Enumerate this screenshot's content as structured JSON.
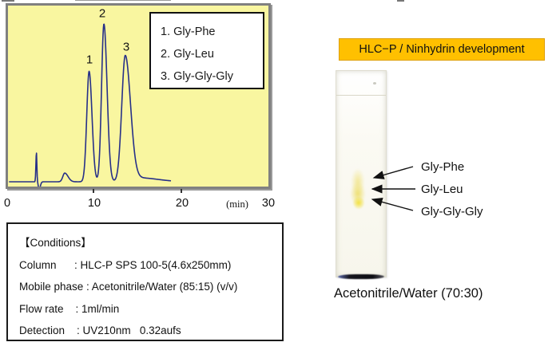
{
  "colors": {
    "chart_bg": "#F9F6A0",
    "trace": "#273088",
    "banner_bg": "#FFC000",
    "banner_border": "#DE9E00"
  },
  "chromatogram": {
    "legend": [
      "1. Gly-Phe",
      "2. Gly-Leu",
      "3. Gly-Gly-Gly"
    ],
    "x_tick_labels": [
      "0",
      "10",
      "20",
      "30"
    ],
    "x_unit": "(min)"
  },
  "chart_data": {
    "type": "line",
    "title": "",
    "xlabel": "(min)",
    "ylabel": "",
    "xlim": [
      0,
      30
    ],
    "x_ticks": [
      0,
      10,
      20,
      30
    ],
    "grid": false,
    "legend_position": "upper right",
    "legend": [
      "1. Gly-Phe",
      "2. Gly-Leu",
      "3. Gly-Gly-Gly"
    ],
    "peaks": [
      {
        "label": "1",
        "compound": "Gly-Phe",
        "retention_min": 9.5,
        "rel_height": 0.7
      },
      {
        "label": "2",
        "compound": "Gly-Leu",
        "retention_min": 11.2,
        "rel_height": 1.0
      },
      {
        "label": "3",
        "compound": "Gly-Gly-Gly",
        "retention_min": 13.6,
        "rel_height": 0.79
      }
    ],
    "minor_features": [
      {
        "type": "injection-spike",
        "t_min": 3.5,
        "rel_height": 0.19
      },
      {
        "type": "small-peak",
        "t_min": 6.7,
        "rel_height": 0.06
      }
    ],
    "trace_end_min": 18.9,
    "trace_model": [
      {
        "t": 3.45,
        "h": 0.185,
        "sl": 0.06,
        "sr": 0.05
      },
      {
        "t": 3.75,
        "h": -0.05,
        "sl": 0.08,
        "sr": 0.14
      },
      {
        "t": 6.7,
        "h": 0.055,
        "sl": 0.22,
        "sr": 0.38
      },
      {
        "t": 9.5,
        "h": 0.7,
        "sl": 0.27,
        "sr": 0.33
      },
      {
        "t": 11.2,
        "h": 1.0,
        "sl": 0.27,
        "sr": 0.36
      },
      {
        "t": 13.65,
        "h": 0.79,
        "sl": 0.4,
        "sr": 0.6
      },
      {
        "t": 15.2,
        "h": 0.025,
        "sl": 1.2,
        "sr": 2.2
      }
    ]
  },
  "conditions": {
    "heading": "【Conditions】",
    "lines": [
      "Column      : HLC-P SPS 100-5(4.6x250mm)",
      "Mobile phase : Acetonitrile/Water (85:15) (v/v)",
      "Flow rate    : 1ml/min",
      "Detection    : UV210nm   0.32aufs"
    ]
  },
  "tlc": {
    "banner": "HLC−P / Ninhydrin development",
    "spot_labels": [
      "Gly-Phe",
      "Gly-Leu",
      "Gly-Gly-Gly"
    ],
    "caption": "Acetonitrile/Water (70:30)"
  }
}
